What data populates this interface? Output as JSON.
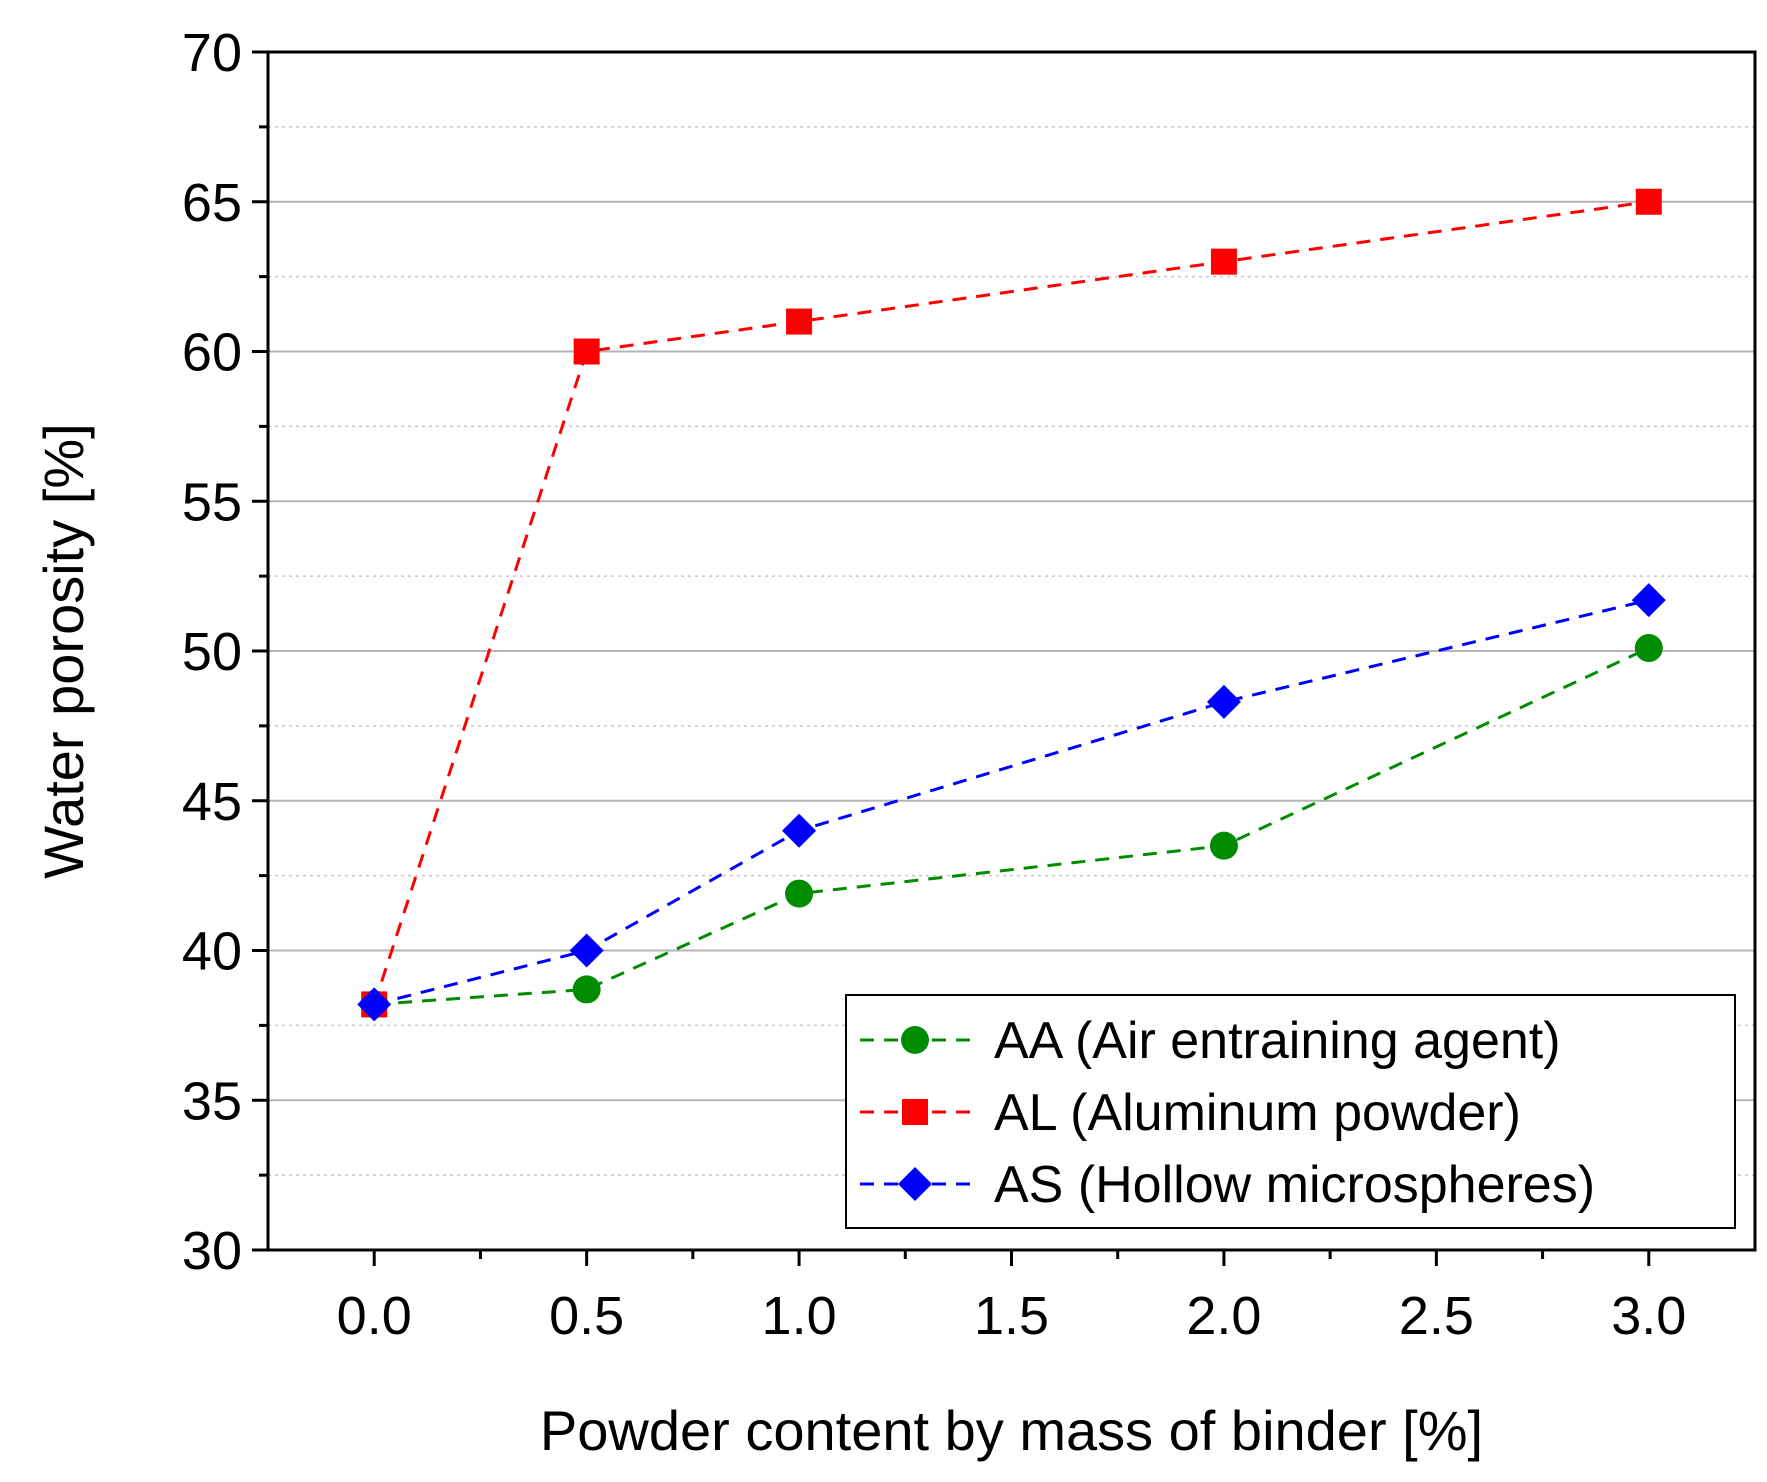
{
  "chart_data": {
    "type": "line",
    "title": "",
    "xlabel": "Powder content by mass of binder [%]",
    "ylabel": "Water porosity [%]",
    "xlim": [
      -0.25,
      3.25
    ],
    "ylim": [
      30,
      70
    ],
    "xticks": [
      0.0,
      0.5,
      1.0,
      1.5,
      2.0,
      2.5,
      3.0
    ],
    "xtick_labels": [
      "0.0",
      "0.5",
      "1.0",
      "1.5",
      "2.0",
      "2.5",
      "3.0"
    ],
    "yticks": [
      30,
      35,
      40,
      45,
      50,
      55,
      60,
      65,
      70
    ],
    "ytick_labels": [
      "30",
      "35",
      "40",
      "45",
      "50",
      "55",
      "60",
      "65",
      "70"
    ],
    "grid": true,
    "legend_position": "bottom-right",
    "series": [
      {
        "name": "AA (Air entraining agent)",
        "color": "#008c00",
        "marker": "circle",
        "line_style": "dashed",
        "x": [
          0.0,
          0.5,
          1.0,
          2.0,
          3.0
        ],
        "y": [
          38.2,
          38.7,
          41.9,
          43.5,
          50.1
        ]
      },
      {
        "name": "AL (Aluminum powder)",
        "color": "#ff0000",
        "marker": "square",
        "line_style": "dashed",
        "x": [
          0.0,
          0.5,
          1.0,
          2.0,
          3.0
        ],
        "y": [
          38.2,
          60.0,
          61.0,
          63.0,
          65.0
        ]
      },
      {
        "name": "AS (Hollow microspheres)",
        "color": "#0000ff",
        "marker": "diamond",
        "line_style": "dashed",
        "x": [
          0.0,
          0.5,
          1.0,
          2.0,
          3.0
        ],
        "y": [
          38.2,
          40.0,
          44.0,
          48.3,
          51.7
        ]
      }
    ]
  }
}
